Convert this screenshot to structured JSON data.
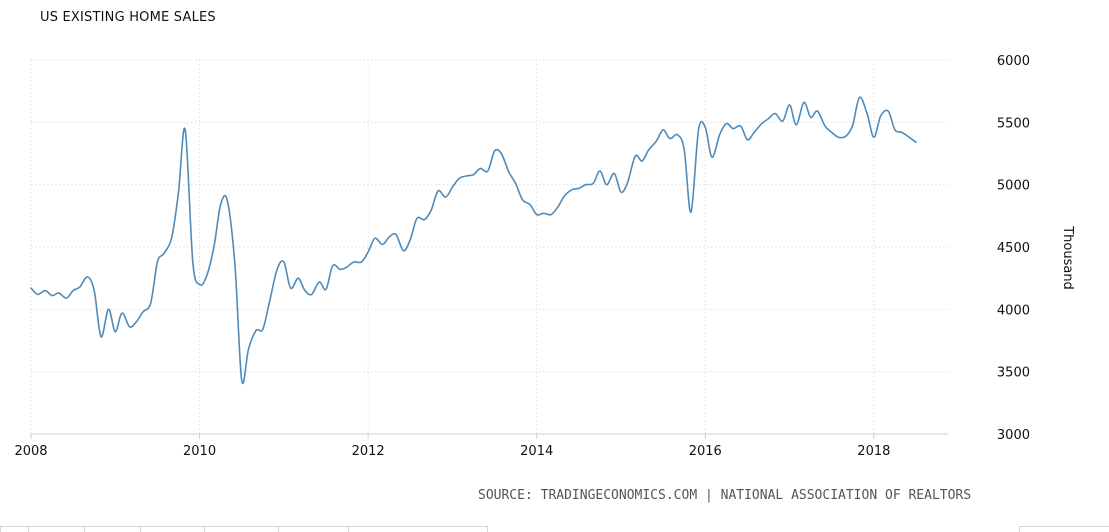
{
  "chart_data": {
    "type": "line",
    "title": "US EXISTING HOME SALES",
    "ylabel": "Thousand",
    "xlabel": "",
    "x_tick_labels": [
      "2008",
      "2010",
      "2012",
      "2014",
      "2016",
      "2018"
    ],
    "y_tick_labels": [
      "3000",
      "3500",
      "4000",
      "4500",
      "5000",
      "5500",
      "6000"
    ],
    "ylim": [
      3000,
      6000
    ],
    "xlim": [
      2008.0,
      2018.5
    ],
    "grid": true,
    "line_color": "#4f8ab8",
    "series": [
      {
        "values": [
          [
            2008.0,
            4170
          ],
          [
            2008.08,
            4120
          ],
          [
            2008.17,
            4150
          ],
          [
            2008.25,
            4110
          ],
          [
            2008.33,
            4130
          ],
          [
            2008.42,
            4090
          ],
          [
            2008.5,
            4150
          ],
          [
            2008.58,
            4180
          ],
          [
            2008.67,
            4260
          ],
          [
            2008.75,
            4150
          ],
          [
            2008.83,
            3780
          ],
          [
            2008.92,
            4000
          ],
          [
            2009.0,
            3820
          ],
          [
            2009.08,
            3970
          ],
          [
            2009.17,
            3860
          ],
          [
            2009.25,
            3900
          ],
          [
            2009.33,
            3980
          ],
          [
            2009.42,
            4050
          ],
          [
            2009.5,
            4380
          ],
          [
            2009.58,
            4450
          ],
          [
            2009.67,
            4580
          ],
          [
            2009.75,
            4940
          ],
          [
            2009.83,
            5440
          ],
          [
            2009.92,
            4380
          ],
          [
            2010.0,
            4200
          ],
          [
            2010.08,
            4260
          ],
          [
            2010.17,
            4500
          ],
          [
            2010.25,
            4840
          ],
          [
            2010.33,
            4870
          ],
          [
            2010.42,
            4350
          ],
          [
            2010.5,
            3430
          ],
          [
            2010.58,
            3680
          ],
          [
            2010.67,
            3830
          ],
          [
            2010.75,
            3840
          ],
          [
            2010.83,
            4060
          ],
          [
            2010.92,
            4320
          ],
          [
            2011.0,
            4380
          ],
          [
            2011.08,
            4170
          ],
          [
            2011.17,
            4250
          ],
          [
            2011.25,
            4150
          ],
          [
            2011.33,
            4120
          ],
          [
            2011.42,
            4220
          ],
          [
            2011.5,
            4160
          ],
          [
            2011.58,
            4350
          ],
          [
            2011.67,
            4320
          ],
          [
            2011.75,
            4340
          ],
          [
            2011.83,
            4380
          ],
          [
            2011.92,
            4380
          ],
          [
            2012.0,
            4460
          ],
          [
            2012.08,
            4570
          ],
          [
            2012.17,
            4520
          ],
          [
            2012.25,
            4580
          ],
          [
            2012.33,
            4600
          ],
          [
            2012.42,
            4470
          ],
          [
            2012.5,
            4560
          ],
          [
            2012.58,
            4730
          ],
          [
            2012.67,
            4720
          ],
          [
            2012.75,
            4800
          ],
          [
            2012.83,
            4950
          ],
          [
            2012.92,
            4900
          ],
          [
            2013.0,
            4980
          ],
          [
            2013.08,
            5050
          ],
          [
            2013.17,
            5070
          ],
          [
            2013.25,
            5080
          ],
          [
            2013.33,
            5130
          ],
          [
            2013.42,
            5110
          ],
          [
            2013.5,
            5270
          ],
          [
            2013.58,
            5250
          ],
          [
            2013.67,
            5100
          ],
          [
            2013.75,
            5010
          ],
          [
            2013.83,
            4880
          ],
          [
            2013.92,
            4840
          ],
          [
            2014.0,
            4760
          ],
          [
            2014.08,
            4770
          ],
          [
            2014.17,
            4760
          ],
          [
            2014.25,
            4820
          ],
          [
            2014.33,
            4910
          ],
          [
            2014.42,
            4960
          ],
          [
            2014.5,
            4970
          ],
          [
            2014.58,
            5000
          ],
          [
            2014.67,
            5010
          ],
          [
            2014.75,
            5110
          ],
          [
            2014.83,
            5000
          ],
          [
            2014.92,
            5090
          ],
          [
            2015.0,
            4940
          ],
          [
            2015.08,
            5020
          ],
          [
            2015.17,
            5230
          ],
          [
            2015.25,
            5190
          ],
          [
            2015.33,
            5280
          ],
          [
            2015.42,
            5350
          ],
          [
            2015.5,
            5440
          ],
          [
            2015.58,
            5370
          ],
          [
            2015.67,
            5400
          ],
          [
            2015.75,
            5280
          ],
          [
            2015.83,
            4780
          ],
          [
            2015.92,
            5440
          ],
          [
            2016.0,
            5460
          ],
          [
            2016.08,
            5220
          ],
          [
            2016.17,
            5400
          ],
          [
            2016.25,
            5490
          ],
          [
            2016.33,
            5450
          ],
          [
            2016.42,
            5470
          ],
          [
            2016.5,
            5360
          ],
          [
            2016.58,
            5420
          ],
          [
            2016.67,
            5490
          ],
          [
            2016.75,
            5530
          ],
          [
            2016.83,
            5570
          ],
          [
            2016.92,
            5510
          ],
          [
            2017.0,
            5640
          ],
          [
            2017.08,
            5480
          ],
          [
            2017.17,
            5660
          ],
          [
            2017.25,
            5540
          ],
          [
            2017.33,
            5590
          ],
          [
            2017.42,
            5470
          ],
          [
            2017.5,
            5420
          ],
          [
            2017.58,
            5380
          ],
          [
            2017.67,
            5390
          ],
          [
            2017.75,
            5480
          ],
          [
            2017.83,
            5700
          ],
          [
            2017.92,
            5570
          ],
          [
            2018.0,
            5380
          ],
          [
            2018.08,
            5550
          ],
          [
            2018.17,
            5590
          ],
          [
            2018.25,
            5440
          ],
          [
            2018.33,
            5420
          ],
          [
            2018.42,
            5380
          ],
          [
            2018.5,
            5340
          ]
        ]
      }
    ]
  },
  "source_text": "SOURCE: TRADINGECONOMICS.COM | NATIONAL ASSOCIATION OF REALTORS"
}
